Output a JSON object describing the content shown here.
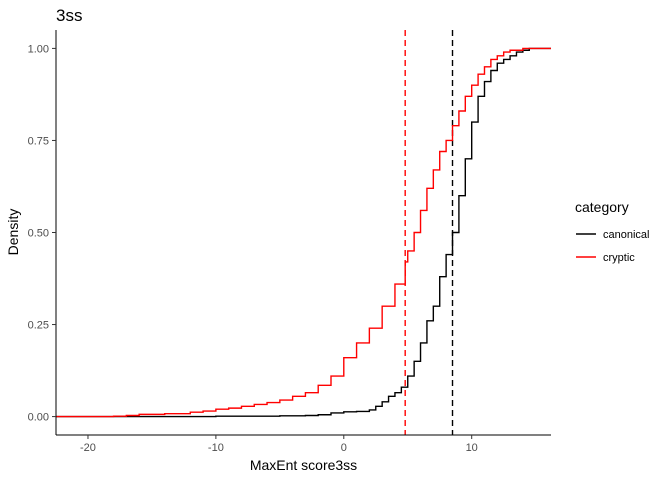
{
  "chart_data": {
    "type": "line",
    "subtype": "ecdf",
    "title": "3ss",
    "xlabel": "MaxEnt score3ss",
    "ylabel": "Density",
    "xlim": [
      -22.5,
      16.2
    ],
    "ylim": [
      -0.05,
      1.05
    ],
    "xticks": [
      -20,
      -10,
      0,
      10
    ],
    "xtick_labels": [
      "-20",
      "-10",
      "0",
      "10"
    ],
    "yticks": [
      0,
      0.25,
      0.5,
      0.75,
      1.0
    ],
    "ytick_labels": [
      "0.00",
      "0.25",
      "0.50",
      "0.75",
      "1.00"
    ],
    "grid": false,
    "legend": {
      "title": "category",
      "placement": "right"
    },
    "series": [
      {
        "name": "canonical",
        "color": "#000000",
        "mean_line": 8.5,
        "points": [
          [
            -22.5,
            0.0
          ],
          [
            -17,
            0.0
          ],
          [
            -10,
            0.001
          ],
          [
            -5,
            0.002
          ],
          [
            -3,
            0.003
          ],
          [
            -2,
            0.005
          ],
          [
            -1,
            0.01
          ],
          [
            0,
            0.013
          ],
          [
            1,
            0.014
          ],
          [
            2,
            0.018
          ],
          [
            2.5,
            0.028
          ],
          [
            3,
            0.04
          ],
          [
            3.5,
            0.055
          ],
          [
            4,
            0.065
          ],
          [
            4.5,
            0.08
          ],
          [
            5,
            0.11
          ],
          [
            5.5,
            0.15
          ],
          [
            6,
            0.2
          ],
          [
            6.5,
            0.26
          ],
          [
            7,
            0.3
          ],
          [
            7.5,
            0.38
          ],
          [
            8,
            0.44
          ],
          [
            8.5,
            0.5
          ],
          [
            9,
            0.6
          ],
          [
            9.5,
            0.7
          ],
          [
            10,
            0.8
          ],
          [
            10.5,
            0.87
          ],
          [
            11,
            0.91
          ],
          [
            11.5,
            0.94
          ],
          [
            12,
            0.96
          ],
          [
            12.5,
            0.97
          ],
          [
            13,
            0.98
          ],
          [
            13.5,
            0.99
          ],
          [
            14,
            0.995
          ],
          [
            14.5,
            1.0
          ],
          [
            16.2,
            1.0
          ]
        ]
      },
      {
        "name": "cryptic",
        "color": "#ff0000",
        "mean_line": 4.8,
        "points": [
          [
            -22.5,
            0.0
          ],
          [
            -20,
            0.0
          ],
          [
            -18,
            0.001
          ],
          [
            -17,
            0.003
          ],
          [
            -16,
            0.006
          ],
          [
            -14,
            0.008
          ],
          [
            -12,
            0.012
          ],
          [
            -11,
            0.015
          ],
          [
            -10,
            0.02
          ],
          [
            -9,
            0.023
          ],
          [
            -8,
            0.028
          ],
          [
            -7,
            0.033
          ],
          [
            -6,
            0.038
          ],
          [
            -5,
            0.045
          ],
          [
            -4,
            0.055
          ],
          [
            -3,
            0.065
          ],
          [
            -2,
            0.085
          ],
          [
            -1,
            0.11
          ],
          [
            0,
            0.16
          ],
          [
            1,
            0.2
          ],
          [
            2,
            0.24
          ],
          [
            3,
            0.3
          ],
          [
            4,
            0.36
          ],
          [
            4.8,
            0.42
          ],
          [
            5,
            0.45
          ],
          [
            5.5,
            0.5
          ],
          [
            6,
            0.56
          ],
          [
            6.5,
            0.62
          ],
          [
            7,
            0.67
          ],
          [
            7.5,
            0.72
          ],
          [
            8,
            0.75
          ],
          [
            8.5,
            0.79
          ],
          [
            9,
            0.83
          ],
          [
            9.5,
            0.87
          ],
          [
            10,
            0.9
          ],
          [
            10.5,
            0.93
          ],
          [
            11,
            0.95
          ],
          [
            11.5,
            0.97
          ],
          [
            12,
            0.98
          ],
          [
            12.5,
            0.99
          ],
          [
            13,
            0.995
          ],
          [
            14,
            1.0
          ],
          [
            16.2,
            1.0
          ]
        ]
      }
    ]
  }
}
